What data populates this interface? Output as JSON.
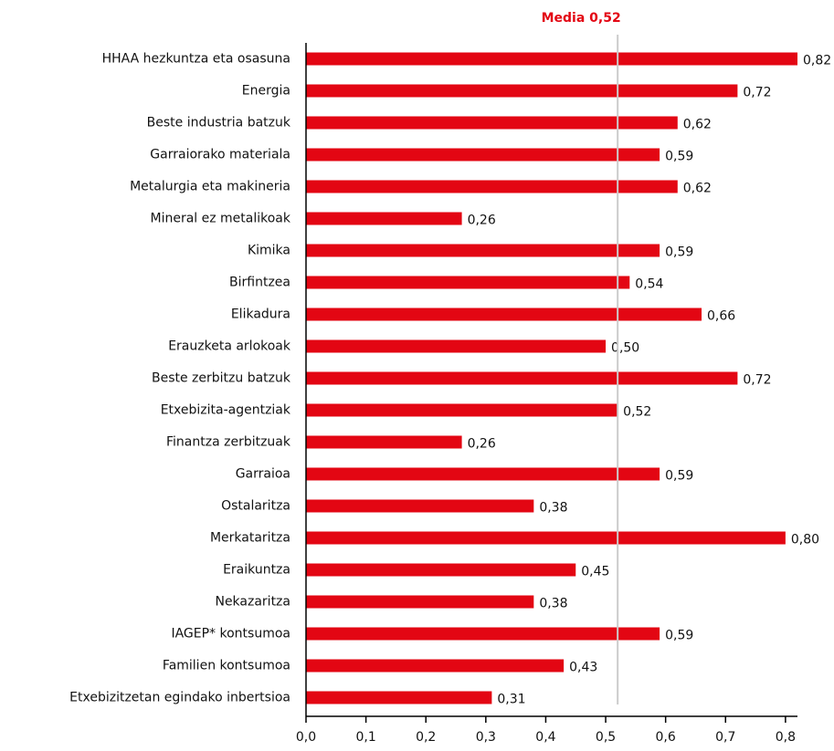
{
  "chart_data": {
    "type": "barh",
    "categories": [
      "HHAA hezkuntza eta osasuna",
      "Energia",
      "Beste industria batzuk",
      "Garraiorako materiala",
      "Metalurgia eta makineria",
      "Mineral ez metalikoak",
      "Kimika",
      "Birfintzea",
      "Elikadura",
      "Erauzketa arlokoak",
      "Beste zerbitzu batzuk",
      "Etxebizita-agentziak",
      "Finantza zerbitzuak",
      "Garraioa",
      "Ostalaritza",
      "Merkataritza",
      "Eraikuntza",
      "Nekazaritza",
      "IAGEP* kontsumoa",
      "Familien kontsumoa",
      "Etxebizitzetan egindako inbertsioa"
    ],
    "values": [
      0.82,
      0.72,
      0.62,
      0.59,
      0.62,
      0.26,
      0.59,
      0.54,
      0.66,
      0.5,
      0.72,
      0.52,
      0.26,
      0.59,
      0.38,
      0.8,
      0.45,
      0.38,
      0.59,
      0.43,
      0.31
    ],
    "value_labels": [
      "0,82",
      "0,72",
      "0,62",
      "0,59",
      "0,62",
      "0,26",
      "0,59",
      "0,54",
      "0,66",
      "0,50",
      "0,72",
      "0,52",
      "0,26",
      "0,59",
      "0,38",
      "0,80",
      "0,45",
      "0,38",
      "0,59",
      "0,43",
      "0,31"
    ],
    "color": "#e30613",
    "xlim": [
      0,
      0.82
    ],
    "xticks": [
      {
        "value": 0,
        "label": "0,0"
      },
      {
        "value": 0.1,
        "label": "0,1"
      },
      {
        "value": 0.2,
        "label": "0,2"
      },
      {
        "value": 0.3,
        "label": "0,3"
      },
      {
        "value": 0.4,
        "label": "0,4"
      },
      {
        "value": 0.5,
        "label": "0,5"
      },
      {
        "value": 0.6,
        "label": "0,6"
      },
      {
        "value": 0.7,
        "label": "0,7"
      },
      {
        "value": 0.8,
        "label": "0,8"
      }
    ],
    "reference_line": {
      "value": 0.52,
      "label": "Media 0,52",
      "color": "#cccccc",
      "label_color": "#e30613"
    }
  }
}
